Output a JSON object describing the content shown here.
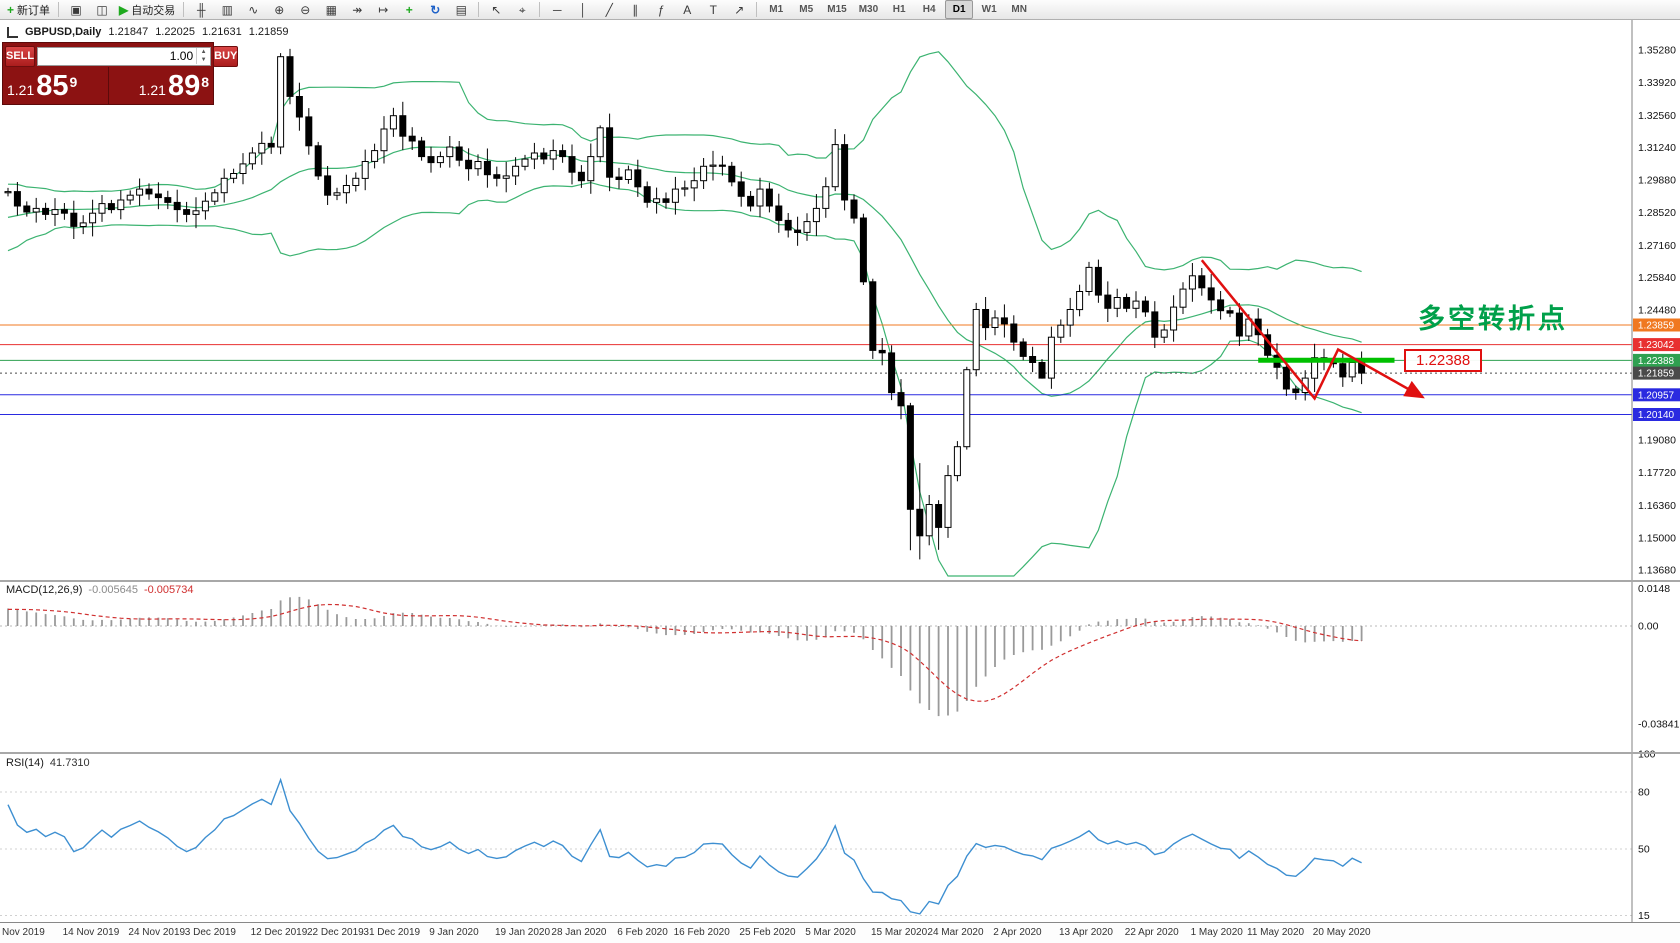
{
  "toolbar": {
    "items": [
      {
        "name": "new-order-button",
        "glyph": "+",
        "glyph_color": "#1faa1f",
        "label": "新订单"
      },
      {
        "sep": true
      },
      {
        "name": "charts-grid-button",
        "glyph": "▣"
      },
      {
        "name": "profile-button",
        "glyph": "◫"
      },
      {
        "name": "autotrading-button",
        "glyph": "▶",
        "glyph_color": "#1faa1f",
        "label": "自动交易"
      },
      {
        "sep": true
      },
      {
        "name": "bar-chart-button",
        "glyph": "╫"
      },
      {
        "name": "candle-chart-button",
        "glyph": "▥"
      },
      {
        "name": "line-chart-button",
        "glyph": "∿"
      },
      {
        "name": "zoom-in-button",
        "glyph": "⊕"
      },
      {
        "name": "zoom-out-button",
        "glyph": "⊖"
      },
      {
        "name": "tile-windows-button",
        "glyph": "▦"
      },
      {
        "name": "auto-scroll-button",
        "glyph": "↠"
      },
      {
        "name": "chart-shift-button",
        "glyph": "↦"
      },
      {
        "name": "indicators-button",
        "glyph": "+",
        "glyph_color": "#1faa1f"
      },
      {
        "name": "refresh-button",
        "glyph": "↻",
        "glyph_color": "#1f62c8"
      },
      {
        "name": "templates-button",
        "glyph": "▤"
      },
      {
        "sep": true
      },
      {
        "name": "cursor-button",
        "glyph": "↖"
      },
      {
        "name": "crosshair-button",
        "glyph": "⌖"
      },
      {
        "sep": true
      },
      {
        "name": "horizontal-line-button",
        "glyph": "─"
      },
      {
        "name": "vertical-line-button",
        "glyph": "│"
      },
      {
        "name": "trendline-button",
        "glyph": "╱"
      },
      {
        "name": "channel-button",
        "glyph": "∥"
      },
      {
        "name": "fibonacci-button",
        "glyph": "ƒ"
      },
      {
        "name": "text-button",
        "glyph": "A"
      },
      {
        "name": "label-button",
        "glyph": "T"
      },
      {
        "name": "arrows-button",
        "glyph": "↗"
      },
      {
        "sep": true
      }
    ],
    "timeframes": [
      "M1",
      "M5",
      "M15",
      "M30",
      "H1",
      "H4",
      "D1",
      "W1",
      "MN"
    ],
    "active_timeframe": "D1"
  },
  "quote_bar": {
    "symbol": "GBPUSD,Daily",
    "open": "1.21847",
    "high": "1.22025",
    "low": "1.21631",
    "close": "1.21859"
  },
  "trade_widget": {
    "sell_label": "SELL",
    "buy_label": "BUY",
    "volume": "1.00",
    "sell": {
      "prefix": "1.21",
      "big": "85",
      "pip": "9"
    },
    "buy": {
      "prefix": "1.21",
      "big": "89",
      "pip": "8"
    }
  },
  "annotations": {
    "turning_point": "多空转折点",
    "turning_point_color": "#00a04a",
    "price_flag": "1.22388",
    "price_flag_color": "#e01010"
  },
  "macd_panel": {
    "title": "MACD(12,26,9)",
    "main_value": "-0.005645",
    "signal_value": "-0.005734",
    "axis_labels": [
      "0.0148",
      "0.00",
      "-0.038415"
    ],
    "histogram_color": "#9a9a9a",
    "signal_color": "#d03030"
  },
  "rsi_panel": {
    "title": "RSI(14)",
    "value": "41.7310",
    "axis_labels": [
      "100",
      "80",
      "50",
      "15"
    ],
    "level_values": [
      80,
      50,
      15
    ],
    "line_color": "#3d8fd1"
  },
  "chart_data": {
    "type": "candlestick",
    "symbol": "GBPUSD",
    "timeframe": "Daily",
    "bull_color": "#ffffff",
    "bear_color": "#000000",
    "band_color": "#3cb371",
    "visible_price_range": [
      1.1368,
      1.3528
    ],
    "warmup_closes": [
      1.26,
      1.2625,
      1.2585,
      1.264,
      1.266,
      1.2635,
      1.27,
      1.272,
      1.2695,
      1.275,
      1.277,
      1.2745,
      1.28,
      1.282,
      1.2795,
      1.283,
      1.285,
      1.2825,
      1.286,
      1.288,
      1.2855,
      1.289,
      1.287,
      1.29,
      1.292,
      1.2935
    ],
    "closes": [
      1.294,
      1.288,
      1.2855,
      1.287,
      1.2845,
      1.2865,
      1.285,
      1.2795,
      1.281,
      1.285,
      1.289,
      1.2865,
      1.2905,
      1.2925,
      1.295,
      1.293,
      1.2915,
      1.2895,
      1.2865,
      1.2845,
      1.286,
      1.29,
      1.2935,
      1.2995,
      1.3015,
      1.3055,
      1.31,
      1.314,
      1.3125,
      1.35,
      1.3335,
      1.325,
      1.313,
      1.3005,
      1.2925,
      1.2935,
      1.2965,
      1.2995,
      1.3065,
      1.311,
      1.32,
      1.3255,
      1.317,
      1.315,
      1.3085,
      1.306,
      1.3085,
      1.3125,
      1.307,
      1.3035,
      1.3065,
      1.301,
      1.2995,
      1.3005,
      1.3045,
      1.3075,
      1.31,
      1.3075,
      1.311,
      1.3085,
      1.302,
      1.2985,
      1.3085,
      1.3205,
      1.3,
      1.299,
      1.303,
      1.296,
      1.2895,
      1.291,
      1.2895,
      1.295,
      1.2955,
      1.2985,
      1.3045,
      1.305,
      1.3045,
      1.298,
      1.292,
      1.288,
      1.295,
      1.288,
      1.282,
      1.278,
      1.277,
      1.2815,
      1.287,
      1.296,
      1.3135,
      1.2905,
      1.283,
      1.2565,
      1.228,
      1.227,
      1.2105,
      1.205,
      1.162,
      1.151,
      1.164,
      1.1545,
      1.176,
      1.188,
      1.22,
      1.245,
      1.2375,
      1.2415,
      1.239,
      1.2315,
      1.2255,
      1.223,
      1.2165,
      1.2335,
      1.2385,
      1.245,
      1.2525,
      1.2625,
      1.251,
      1.2455,
      1.25,
      1.2455,
      1.2485,
      1.244,
      1.2335,
      1.2365,
      1.246,
      1.2535,
      1.259,
      1.254,
      1.249,
      1.2445,
      1.2435,
      1.234,
      1.241,
      1.2345,
      1.226,
      1.221,
      1.212,
      1.2105,
      1.2165,
      1.225,
      1.2235,
      1.2225,
      1.217,
      1.223,
      1.2186
    ],
    "overrides": {
      "29": [
        1.3125,
        1.3515,
        1.3095,
        1.35
      ],
      "63": [
        1.3085,
        1.3215,
        1.3062,
        1.3205
      ],
      "88": [
        1.296,
        1.32,
        1.2942,
        1.3135
      ],
      "91": [
        1.283,
        1.2848,
        1.2552,
        1.2565
      ],
      "92": [
        1.2565,
        1.2578,
        1.2245,
        1.228
      ],
      "96": [
        1.205,
        1.2062,
        1.145,
        1.162
      ],
      "97": [
        1.162,
        1.1812,
        1.1412,
        1.151
      ],
      "99": [
        1.164,
        1.1658,
        1.1452,
        1.1545
      ],
      "102": [
        1.188,
        1.2212,
        1.1868,
        1.22
      ],
      "110": [
        1.223,
        1.2244,
        1.2163,
        1.2165
      ],
      "115": [
        1.2525,
        1.2648,
        1.2508,
        1.2625
      ],
      "137": [
        1.212,
        1.2134,
        1.2075,
        1.2105
      ]
    },
    "indicators": {
      "bollinger": {
        "period": 20,
        "deviation": 2
      },
      "macd": {
        "fast": 12,
        "slow": 26,
        "signal": 9
      },
      "rsi": {
        "period": 14
      }
    },
    "levels": [
      {
        "price": 1.23859,
        "label": "1.23859",
        "color": "#f07820",
        "style": "solid"
      },
      {
        "price": 1.23042,
        "label": "1.23042",
        "color": "#e83030",
        "style": "solid"
      },
      {
        "price": 1.22388,
        "label": "1.22388",
        "color": "#2fa050",
        "style": "solid"
      },
      {
        "price": 1.21859,
        "label": "1.21859",
        "color": "#4a4a4a",
        "style": "dotted",
        "current": true
      },
      {
        "price": 1.20957,
        "label": "1.20957",
        "color": "#2a2ae0",
        "style": "solid"
      },
      {
        "price": 1.2014,
        "label": "1.20140",
        "color": "#2a2ae0",
        "style": "solid"
      }
    ],
    "objects": {
      "thick_segment": {
        "price": 1.2239,
        "i_start": 133,
        "i_end": 147.5,
        "color": "#00c000",
        "width": 5
      },
      "arrow": {
        "points": [
          [
            127,
            1.2655
          ],
          [
            139,
            1.2081
          ],
          [
            141.5,
            1.2284
          ],
          [
            150.5,
            1.2086
          ]
        ],
        "color": "#e01010",
        "width": 2.5
      }
    },
    "price_axis_labels": [
      "1.35280",
      "1.33920",
      "1.32560",
      "1.31240",
      "1.29880",
      "1.28520",
      "1.27160",
      "1.25840",
      "1.24480",
      "1.19080",
      "1.17720",
      "1.16360",
      "1.15000",
      "1.13680"
    ],
    "date_axis": [
      [
        "Nov 2019",
        0
      ],
      [
        "14 Nov 2019",
        9
      ],
      [
        "24 Nov 2019",
        16
      ],
      [
        "3 Dec 2019",
        22
      ],
      [
        "12 Dec 2019",
        29
      ],
      [
        "22 Dec 2019",
        35
      ],
      [
        "31 Dec 2019",
        41
      ],
      [
        "9 Jan 2020",
        48
      ],
      [
        "19 Jan 2020",
        55
      ],
      [
        "28 Jan 2020",
        61
      ],
      [
        "6 Feb 2020",
        68
      ],
      [
        "16 Feb 2020",
        74
      ],
      [
        "25 Feb 2020",
        81
      ],
      [
        "5 Mar 2020",
        88
      ],
      [
        "15 Mar 2020",
        95
      ],
      [
        "24 Mar 2020",
        101
      ],
      [
        "2 Apr 2020",
        108
      ],
      [
        "13 Apr 2020",
        115
      ],
      [
        "22 Apr 2020",
        122
      ],
      [
        "1 May 2020",
        129
      ],
      [
        "11 May 2020",
        135
      ],
      [
        "20 May 2020",
        142
      ]
    ]
  }
}
